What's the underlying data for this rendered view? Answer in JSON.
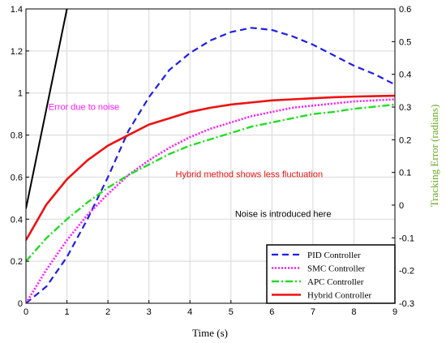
{
  "chart_data": {
    "type": "line",
    "xlabel": "Time (s)",
    "ylabel": "",
    "ylabel_right": "Tracking Error (radians)",
    "xlim": [
      0,
      9
    ],
    "ylim": [
      0,
      1.4
    ],
    "ylim_right": [
      -0.3,
      0.6
    ],
    "x_ticks": [
      "0",
      "1",
      "2",
      "3",
      "4",
      "5",
      "6",
      "7",
      "8",
      "9"
    ],
    "y_ticks": [
      "0",
      "0.2",
      "0.4",
      "0.6",
      "0.8",
      "1",
      "1.2",
      "1.4"
    ],
    "y_ticks_right": [
      "-0.3",
      "-0.2",
      "-0.1",
      "0",
      "0.1",
      "0.2",
      "0.3",
      "0.4",
      "0.5",
      "0.6"
    ],
    "grid": true,
    "legend_position": "bottom-right",
    "colors": {
      "pid": "#1f1fe6",
      "smc": "#ff1aff",
      "apc": "#22dd22",
      "hybrid": "#ee1111",
      "error": "#000000",
      "right_axis": "#66aa22",
      "grid": "#d8d8d8"
    },
    "series": [
      {
        "name": "PID Controller",
        "key": "pid",
        "style": "dashed",
        "x": [
          0,
          0.5,
          1,
          1.5,
          2,
          2.5,
          3,
          3.5,
          4,
          4.5,
          5,
          5.5,
          6,
          6.5,
          7,
          7.5,
          8,
          8.5,
          9
        ],
        "y": [
          0.0,
          0.08,
          0.22,
          0.4,
          0.6,
          0.82,
          0.98,
          1.11,
          1.19,
          1.25,
          1.29,
          1.31,
          1.3,
          1.27,
          1.23,
          1.18,
          1.13,
          1.09,
          1.04
        ]
      },
      {
        "name": "SMC Controller",
        "key": "smc",
        "style": "dotted",
        "x": [
          0,
          0.5,
          1,
          1.5,
          2,
          2.5,
          3,
          3.5,
          4,
          4.5,
          5,
          5.5,
          6,
          6.5,
          7,
          7.5,
          8,
          8.5,
          9
        ],
        "y": [
          0.0,
          0.16,
          0.3,
          0.42,
          0.52,
          0.61,
          0.68,
          0.74,
          0.79,
          0.83,
          0.86,
          0.89,
          0.91,
          0.93,
          0.94,
          0.95,
          0.96,
          0.965,
          0.97
        ]
      },
      {
        "name": "APC Controller",
        "key": "apc",
        "style": "dashdot",
        "x": [
          0,
          0.5,
          1,
          1.5,
          2,
          2.5,
          3,
          3.5,
          4,
          4.5,
          5,
          5.5,
          6,
          6.5,
          7,
          7.5,
          8,
          8.5,
          9
        ],
        "y": [
          0.2,
          0.31,
          0.4,
          0.48,
          0.55,
          0.61,
          0.66,
          0.71,
          0.75,
          0.78,
          0.81,
          0.84,
          0.86,
          0.88,
          0.9,
          0.91,
          0.925,
          0.935,
          0.945
        ]
      },
      {
        "name": "Hybrid Controller",
        "key": "hybrid",
        "style": "solid",
        "x": [
          0,
          0.5,
          1,
          1.5,
          2,
          2.5,
          3,
          3.5,
          4,
          4.5,
          5,
          5.5,
          6,
          6.5,
          7,
          7.5,
          8,
          8.5,
          9
        ],
        "y": [
          0.3,
          0.47,
          0.59,
          0.68,
          0.75,
          0.8,
          0.85,
          0.88,
          0.91,
          0.93,
          0.945,
          0.955,
          0.965,
          0.97,
          0.975,
          0.98,
          0.983,
          0.985,
          0.987
        ]
      }
    ],
    "error_line": {
      "key": "error",
      "axis": "left",
      "x": [
        0,
        1
      ],
      "y": [
        0.45,
        1.4
      ]
    },
    "annotations": [
      {
        "text": "Error due to noise",
        "color": "#ff1aff",
        "x": 0.55,
        "y": 0.92
      },
      {
        "text": "Hybrid method shows less fluctuation",
        "color": "#ee1111",
        "x": 3.65,
        "y": 0.6
      },
      {
        "text": "Noise is introduced here",
        "color": "#000000",
        "x": 5.1,
        "y": 0.41
      }
    ]
  }
}
